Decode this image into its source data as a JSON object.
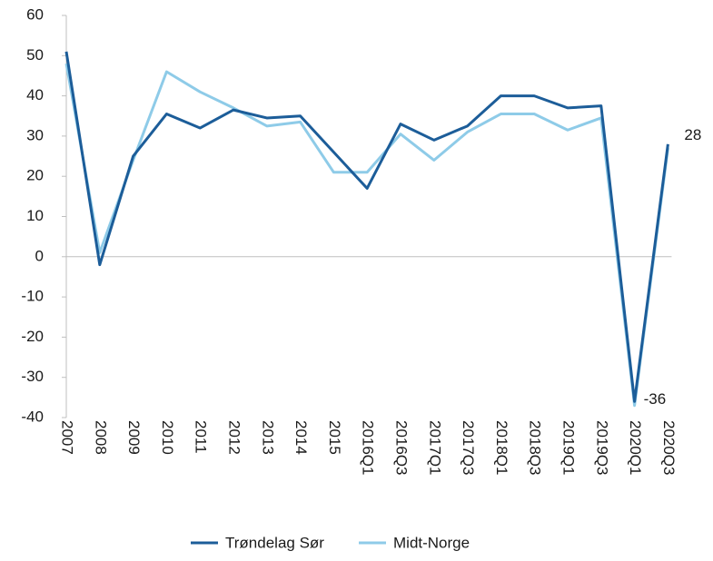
{
  "chart_data": {
    "type": "line",
    "categories": [
      "2007",
      "2008",
      "2009",
      "2010",
      "2011",
      "2012",
      "2013",
      "2014",
      "2015",
      "2016Q1",
      "2016Q3",
      "2017Q1",
      "2017Q3",
      "2018Q1",
      "2018Q3",
      "2019Q1",
      "2019Q3",
      "2020Q1",
      "2020Q3"
    ],
    "series": [
      {
        "name": "Trøndelag Sør",
        "color": "#1c5d99",
        "values": [
          51,
          -2,
          25,
          35.5,
          32,
          36.5,
          34.5,
          35,
          26,
          17,
          33,
          29,
          32.5,
          40,
          40,
          37,
          37.5,
          -36,
          28
        ],
        "value_labels": [
          null,
          null,
          null,
          null,
          null,
          null,
          null,
          null,
          null,
          null,
          null,
          null,
          null,
          null,
          null,
          null,
          null,
          "-36",
          "28"
        ]
      },
      {
        "name": "Midt-Norge",
        "color": "#8ecbe8",
        "values": [
          48,
          1,
          24,
          46,
          41,
          37,
          32.5,
          33.5,
          21,
          21,
          30.5,
          24,
          31,
          35.5,
          35.5,
          31.5,
          34.5,
          -37,
          27
        ]
      }
    ],
    "ylim": [
      -40,
      60
    ],
    "yticks": [
      -40,
      -30,
      -20,
      -10,
      0,
      10,
      20,
      30,
      40,
      50,
      60
    ],
    "legend": "bottom"
  }
}
